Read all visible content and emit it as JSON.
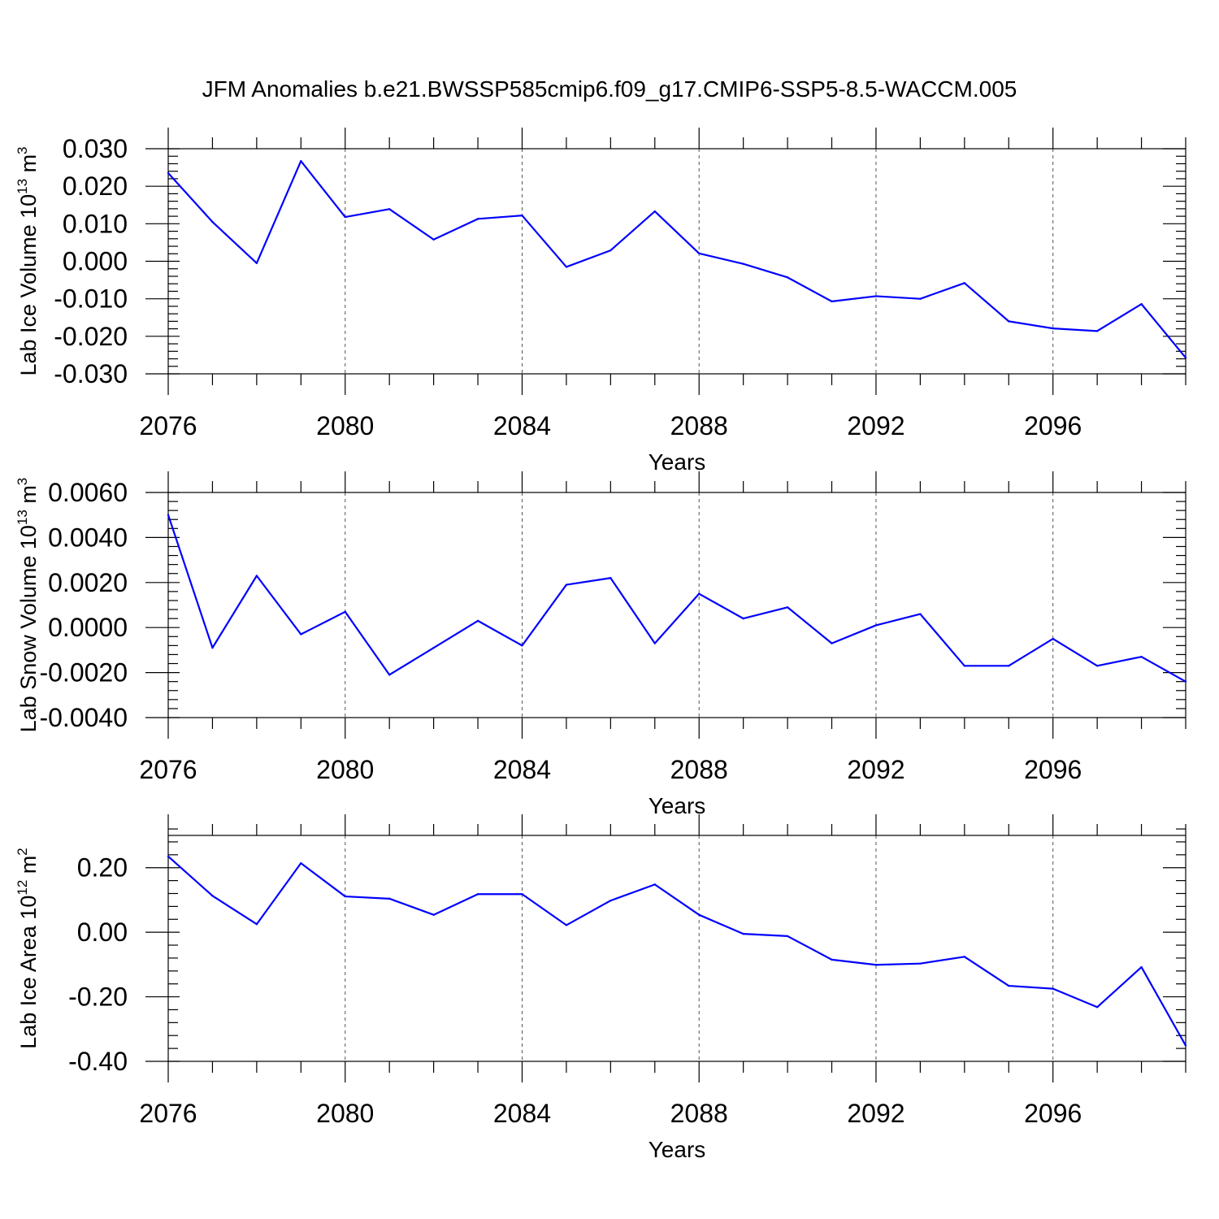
{
  "figure": {
    "title": "JFM Anomalies b.e21.BWSSP585cmip6.f09_g17.CMIP6-SSP5-8.5-WACCM.005",
    "series_color": "#0000ff"
  },
  "chart_data": [
    {
      "type": "line",
      "title": "",
      "xlabel": "Years",
      "ylabel": "Lab Ice Volume 10",
      "ylabel_sup": "13",
      "ylabel_unit": "m",
      "ylabel_unit_sup": "3",
      "xlim": [
        2076,
        2099
      ],
      "ylim": [
        -0.03,
        0.03
      ],
      "x_ticks": [
        2076,
        2080,
        2084,
        2088,
        2092,
        2096
      ],
      "y_ticks": [
        0.03,
        0.02,
        0.01,
        0.0,
        -0.01,
        -0.02,
        -0.03
      ],
      "y_tick_labels": [
        "0.030",
        "0.020",
        "0.010",
        "0.000",
        "-0.010",
        "-0.020",
        "-0.030"
      ],
      "grid": "vertical dashed at major x ticks",
      "x": [
        2076,
        2077,
        2078,
        2079,
        2080,
        2081,
        2082,
        2083,
        2084,
        2085,
        2086,
        2087,
        2088,
        2089,
        2090,
        2091,
        2092,
        2093,
        2094,
        2095,
        2096,
        2097,
        2098,
        2099
      ],
      "series": [
        {
          "values": [
            0.0235,
            0.0105,
            -0.0005,
            0.0267,
            0.0118,
            0.0139,
            0.0058,
            0.0113,
            0.0122,
            -0.0015,
            0.0029,
            0.0133,
            0.0021,
            -0.0007,
            -0.0043,
            -0.0107,
            -0.0093,
            -0.01,
            -0.0058,
            -0.016,
            -0.0179,
            -0.0186,
            -0.0114,
            -0.0257
          ]
        }
      ]
    },
    {
      "type": "line",
      "title": "",
      "xlabel": "Years",
      "ylabel": "Lab Snow Volume 10",
      "ylabel_sup": "13",
      "ylabel_unit": "m",
      "ylabel_unit_sup": "3",
      "xlim": [
        2076,
        2099
      ],
      "ylim": [
        -0.004,
        0.006
      ],
      "x_ticks": [
        2076,
        2080,
        2084,
        2088,
        2092,
        2096
      ],
      "y_ticks": [
        0.006,
        0.004,
        0.002,
        0.0,
        -0.002,
        -0.004
      ],
      "y_tick_labels": [
        "0.0060",
        "0.0040",
        "0.0020",
        "0.0000",
        "-0.0020",
        "-0.0040"
      ],
      "grid": "vertical dashed at major x ticks",
      "x": [
        2076,
        2077,
        2078,
        2079,
        2080,
        2081,
        2082,
        2083,
        2084,
        2085,
        2086,
        2087,
        2088,
        2089,
        2090,
        2091,
        2092,
        2093,
        2094,
        2095,
        2096,
        2097,
        2098,
        2099
      ],
      "series": [
        {
          "values": [
            0.005,
            -0.0009,
            0.0023,
            -0.0003,
            0.0007,
            -0.0021,
            -0.0009,
            0.0003,
            -0.0008,
            0.0019,
            0.0022,
            -0.0007,
            0.0015,
            0.0004,
            0.0009,
            -0.0007,
            0.0001,
            0.0006,
            -0.0017,
            -0.0017,
            -0.0005,
            -0.0017,
            -0.0013,
            -0.0024
          ]
        }
      ]
    },
    {
      "type": "line",
      "title": "",
      "xlabel": "Years",
      "ylabel": "Lab Ice Area 10",
      "ylabel_sup": "12",
      "ylabel_unit": "m",
      "ylabel_unit_sup": "2",
      "xlim": [
        2076,
        2099
      ],
      "ylim": [
        -0.4,
        0.3
      ],
      "x_ticks": [
        2076,
        2080,
        2084,
        2088,
        2092,
        2096
      ],
      "y_ticks": [
        0.2,
        0.0,
        -0.2,
        -0.4
      ],
      "y_tick_labels": [
        "0.20",
        "0.00",
        "-0.20",
        "-0.40"
      ],
      "grid": "vertical dashed at major x ticks",
      "x": [
        2076,
        2077,
        2078,
        2079,
        2080,
        2081,
        2082,
        2083,
        2084,
        2085,
        2086,
        2087,
        2088,
        2089,
        2090,
        2091,
        2092,
        2093,
        2094,
        2095,
        2096,
        2097,
        2098,
        2099
      ],
      "series": [
        {
          "values": [
            0.235,
            0.113,
            0.025,
            0.214,
            0.111,
            0.104,
            0.054,
            0.118,
            0.118,
            0.022,
            0.098,
            0.148,
            0.054,
            -0.005,
            -0.012,
            -0.085,
            -0.101,
            -0.097,
            -0.076,
            -0.166,
            -0.175,
            -0.232,
            -0.108,
            -0.351
          ]
        }
      ]
    }
  ]
}
